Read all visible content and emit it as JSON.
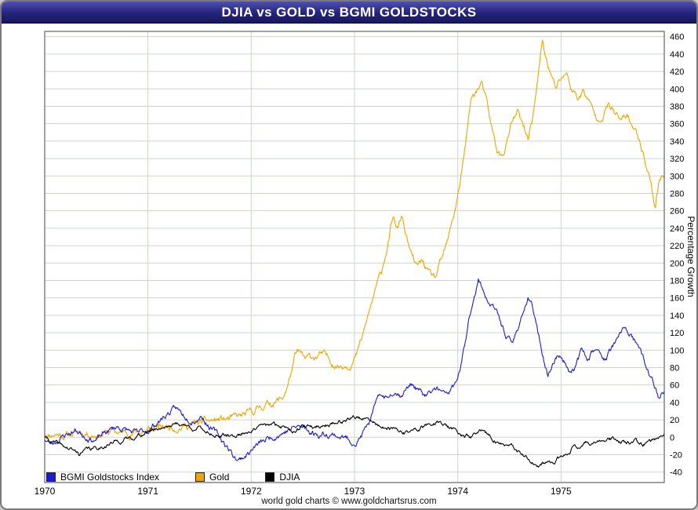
{
  "window": {
    "title": "DJIA vs GOLD vs BGMI GOLDSTOCKS"
  },
  "footer": {
    "credit": "world gold charts © www.goldchartsrus.com"
  },
  "legend": {
    "items": [
      {
        "label": "BGMI Goldstocks Index",
        "color": "#1c1cd8"
      },
      {
        "label": "Gold",
        "color": "#eea500"
      },
      {
        "label": "DJIA",
        "color": "#000000"
      }
    ]
  },
  "chart_data": {
    "type": "line",
    "title": "DJIA vs GOLD vs BGMI GOLDSTOCKS",
    "xlabel": "",
    "ylabel": "Percentage Growth",
    "xlim": [
      1970,
      1976
    ],
    "ylim": [
      -52,
      466
    ],
    "x_ticks": [
      1970,
      1971,
      1972,
      1973,
      1974,
      1975
    ],
    "y_ticks": [
      -40,
      -20,
      0,
      20,
      40,
      60,
      80,
      100,
      120,
      140,
      160,
      180,
      200,
      220,
      240,
      260,
      280,
      300,
      320,
      340,
      360,
      380,
      400,
      420,
      440,
      460
    ],
    "grid": true,
    "grid_color": "#ccd5cc",
    "legend_position": "bottom-left",
    "series": [
      {
        "name": "Gold",
        "color": "#eea500",
        "seed": 11,
        "noise": 6,
        "points": [
          [
            1970,
            3
          ],
          [
            1970.1,
            5
          ],
          [
            1970.2,
            3
          ],
          [
            1970.35,
            6
          ],
          [
            1970.5,
            4
          ],
          [
            1970.65,
            6
          ],
          [
            1970.8,
            5
          ],
          [
            1970.95,
            7
          ],
          [
            1971.1,
            10
          ],
          [
            1971.25,
            13
          ],
          [
            1971.4,
            14
          ],
          [
            1971.55,
            17
          ],
          [
            1971.7,
            20
          ],
          [
            1971.85,
            21
          ],
          [
            1972,
            27
          ],
          [
            1972.1,
            36
          ],
          [
            1972.2,
            40
          ],
          [
            1972.3,
            44
          ],
          [
            1972.36,
            62
          ],
          [
            1972.42,
            90
          ],
          [
            1972.46,
            97
          ],
          [
            1972.52,
            88
          ],
          [
            1972.6,
            92
          ],
          [
            1972.68,
            95
          ],
          [
            1972.76,
            88
          ],
          [
            1972.85,
            83
          ],
          [
            1972.95,
            86
          ],
          [
            1973.02,
            95
          ],
          [
            1973.08,
            115
          ],
          [
            1973.14,
            142
          ],
          [
            1973.2,
            168
          ],
          [
            1973.26,
            188
          ],
          [
            1973.32,
            222
          ],
          [
            1973.37,
            250
          ],
          [
            1973.42,
            238
          ],
          [
            1973.46,
            253
          ],
          [
            1973.5,
            232
          ],
          [
            1973.55,
            208
          ],
          [
            1973.6,
            194
          ],
          [
            1973.66,
            202
          ],
          [
            1973.72,
            186
          ],
          [
            1973.78,
            181
          ],
          [
            1973.84,
            200
          ],
          [
            1973.9,
            222
          ],
          [
            1973.96,
            252
          ],
          [
            1974.02,
            292
          ],
          [
            1974.08,
            340
          ],
          [
            1974.13,
            388
          ],
          [
            1974.18,
            398
          ],
          [
            1974.23,
            406
          ],
          [
            1974.28,
            382
          ],
          [
            1974.33,
            352
          ],
          [
            1974.38,
            330
          ],
          [
            1974.43,
            320
          ],
          [
            1974.48,
            342
          ],
          [
            1974.53,
            362
          ],
          [
            1974.58,
            372
          ],
          [
            1974.63,
            355
          ],
          [
            1974.68,
            342
          ],
          [
            1974.73,
            372
          ],
          [
            1974.78,
            415
          ],
          [
            1974.82,
            455
          ],
          [
            1974.86,
            432
          ],
          [
            1974.9,
            415
          ],
          [
            1974.95,
            400
          ],
          [
            1975,
            412
          ],
          [
            1975.05,
            420
          ],
          [
            1975.1,
            400
          ],
          [
            1975.16,
            390
          ],
          [
            1975.22,
            398
          ],
          [
            1975.28,
            382
          ],
          [
            1975.34,
            366
          ],
          [
            1975.4,
            372
          ],
          [
            1975.46,
            382
          ],
          [
            1975.52,
            372
          ],
          [
            1975.58,
            362
          ],
          [
            1975.64,
            370
          ],
          [
            1975.7,
            355
          ],
          [
            1975.76,
            342
          ],
          [
            1975.82,
            318
          ],
          [
            1975.87,
            295
          ],
          [
            1975.91,
            265
          ],
          [
            1975.95,
            295
          ],
          [
            1976,
            300
          ]
        ]
      },
      {
        "name": "BGMI Goldstocks Index",
        "color": "#1c1cd8",
        "seed": 23,
        "noise": 5,
        "points": [
          [
            1970,
            -2
          ],
          [
            1970.06,
            -8
          ],
          [
            1970.12,
            -3
          ],
          [
            1970.2,
            3
          ],
          [
            1970.3,
            8
          ],
          [
            1970.4,
            2
          ],
          [
            1970.5,
            -3
          ],
          [
            1970.6,
            6
          ],
          [
            1970.7,
            12
          ],
          [
            1970.8,
            8
          ],
          [
            1970.9,
            3
          ],
          [
            1971,
            8
          ],
          [
            1971.1,
            18
          ],
          [
            1971.2,
            28
          ],
          [
            1971.27,
            32
          ],
          [
            1971.35,
            25
          ],
          [
            1971.45,
            22
          ],
          [
            1971.52,
            26
          ],
          [
            1971.6,
            12
          ],
          [
            1971.68,
            2
          ],
          [
            1971.75,
            -8
          ],
          [
            1971.82,
            -20
          ],
          [
            1971.88,
            -26
          ],
          [
            1971.95,
            -20
          ],
          [
            1972.05,
            -10
          ],
          [
            1972.15,
            -3
          ],
          [
            1972.25,
            4
          ],
          [
            1972.35,
            8
          ],
          [
            1972.45,
            12
          ],
          [
            1972.55,
            8
          ],
          [
            1972.65,
            3
          ],
          [
            1972.75,
            5
          ],
          [
            1972.85,
            2
          ],
          [
            1972.95,
            -3
          ],
          [
            1973.02,
            -5
          ],
          [
            1973.08,
            4
          ],
          [
            1973.14,
            16
          ],
          [
            1973.2,
            35
          ],
          [
            1973.26,
            48
          ],
          [
            1973.32,
            44
          ],
          [
            1973.38,
            55
          ],
          [
            1973.44,
            50
          ],
          [
            1973.5,
            56
          ],
          [
            1973.56,
            62
          ],
          [
            1973.62,
            54
          ],
          [
            1973.68,
            46
          ],
          [
            1973.74,
            50
          ],
          [
            1973.8,
            56
          ],
          [
            1973.86,
            48
          ],
          [
            1973.92,
            52
          ],
          [
            1973.98,
            60
          ],
          [
            1974.04,
            85
          ],
          [
            1974.1,
            128
          ],
          [
            1974.16,
            165
          ],
          [
            1974.2,
            180
          ],
          [
            1974.25,
            168
          ],
          [
            1974.3,
            156
          ],
          [
            1974.36,
            146
          ],
          [
            1974.42,
            130
          ],
          [
            1974.48,
            115
          ],
          [
            1974.53,
            106
          ],
          [
            1974.58,
            124
          ],
          [
            1974.63,
            145
          ],
          [
            1974.68,
            158
          ],
          [
            1974.73,
            146
          ],
          [
            1974.78,
            118
          ],
          [
            1974.83,
            92
          ],
          [
            1974.87,
            70
          ],
          [
            1974.92,
            86
          ],
          [
            1974.97,
            95
          ],
          [
            1975.02,
            90
          ],
          [
            1975.08,
            78
          ],
          [
            1975.14,
            82
          ],
          [
            1975.2,
            98
          ],
          [
            1975.26,
            92
          ],
          [
            1975.32,
            102
          ],
          [
            1975.38,
            94
          ],
          [
            1975.44,
            90
          ],
          [
            1975.5,
            104
          ],
          [
            1975.56,
            112
          ],
          [
            1975.62,
            126
          ],
          [
            1975.68,
            116
          ],
          [
            1975.74,
            104
          ],
          [
            1975.8,
            88
          ],
          [
            1975.86,
            70
          ],
          [
            1975.92,
            55
          ],
          [
            1975.96,
            44
          ],
          [
            1976,
            54
          ]
        ]
      },
      {
        "name": "DJIA",
        "color": "#000000",
        "seed": 41,
        "noise": 3.5,
        "points": [
          [
            1970,
            0
          ],
          [
            1970.08,
            -6
          ],
          [
            1970.16,
            -10
          ],
          [
            1970.25,
            -14
          ],
          [
            1970.33,
            -19
          ],
          [
            1970.4,
            -15
          ],
          [
            1970.5,
            -13
          ],
          [
            1970.6,
            -8
          ],
          [
            1970.7,
            -5
          ],
          [
            1970.8,
            -2
          ],
          [
            1970.9,
            2
          ],
          [
            1971,
            6
          ],
          [
            1971.1,
            11
          ],
          [
            1971.2,
            14
          ],
          [
            1971.3,
            16
          ],
          [
            1971.4,
            12
          ],
          [
            1971.5,
            10
          ],
          [
            1971.6,
            5
          ],
          [
            1971.7,
            2
          ],
          [
            1971.8,
            0
          ],
          [
            1971.9,
            4
          ],
          [
            1972,
            9
          ],
          [
            1972.1,
            12
          ],
          [
            1972.2,
            14
          ],
          [
            1972.3,
            12
          ],
          [
            1972.4,
            10
          ],
          [
            1972.5,
            12
          ],
          [
            1972.6,
            11
          ],
          [
            1972.7,
            14
          ],
          [
            1972.8,
            16
          ],
          [
            1972.9,
            20
          ],
          [
            1973,
            24
          ],
          [
            1973.08,
            21
          ],
          [
            1973.16,
            17
          ],
          [
            1973.25,
            13
          ],
          [
            1973.33,
            9
          ],
          [
            1973.42,
            7
          ],
          [
            1973.5,
            5
          ],
          [
            1973.6,
            9
          ],
          [
            1973.7,
            13
          ],
          [
            1973.76,
            17
          ],
          [
            1973.82,
            19
          ],
          [
            1973.88,
            13
          ],
          [
            1973.94,
            9
          ],
          [
            1974,
            6
          ],
          [
            1974.06,
            2
          ],
          [
            1974.12,
            0
          ],
          [
            1974.18,
            4
          ],
          [
            1974.24,
            5
          ],
          [
            1974.3,
            1
          ],
          [
            1974.36,
            -3
          ],
          [
            1974.42,
            -7
          ],
          [
            1974.5,
            -11
          ],
          [
            1974.58,
            -17
          ],
          [
            1974.66,
            -24
          ],
          [
            1974.72,
            -29
          ],
          [
            1974.78,
            -37
          ],
          [
            1974.83,
            -33
          ],
          [
            1974.88,
            -28
          ],
          [
            1974.93,
            -31
          ],
          [
            1974.98,
            -25
          ],
          [
            1975.04,
            -18
          ],
          [
            1975.1,
            -12
          ],
          [
            1975.18,
            -8
          ],
          [
            1975.26,
            -5
          ],
          [
            1975.34,
            -7
          ],
          [
            1975.42,
            -4
          ],
          [
            1975.5,
            -2
          ],
          [
            1975.58,
            -5
          ],
          [
            1975.66,
            -8
          ],
          [
            1975.72,
            -6
          ],
          [
            1975.78,
            -9
          ],
          [
            1975.84,
            -7
          ],
          [
            1975.9,
            -4
          ],
          [
            1975.95,
            -1
          ],
          [
            1976,
            7
          ]
        ]
      }
    ]
  }
}
